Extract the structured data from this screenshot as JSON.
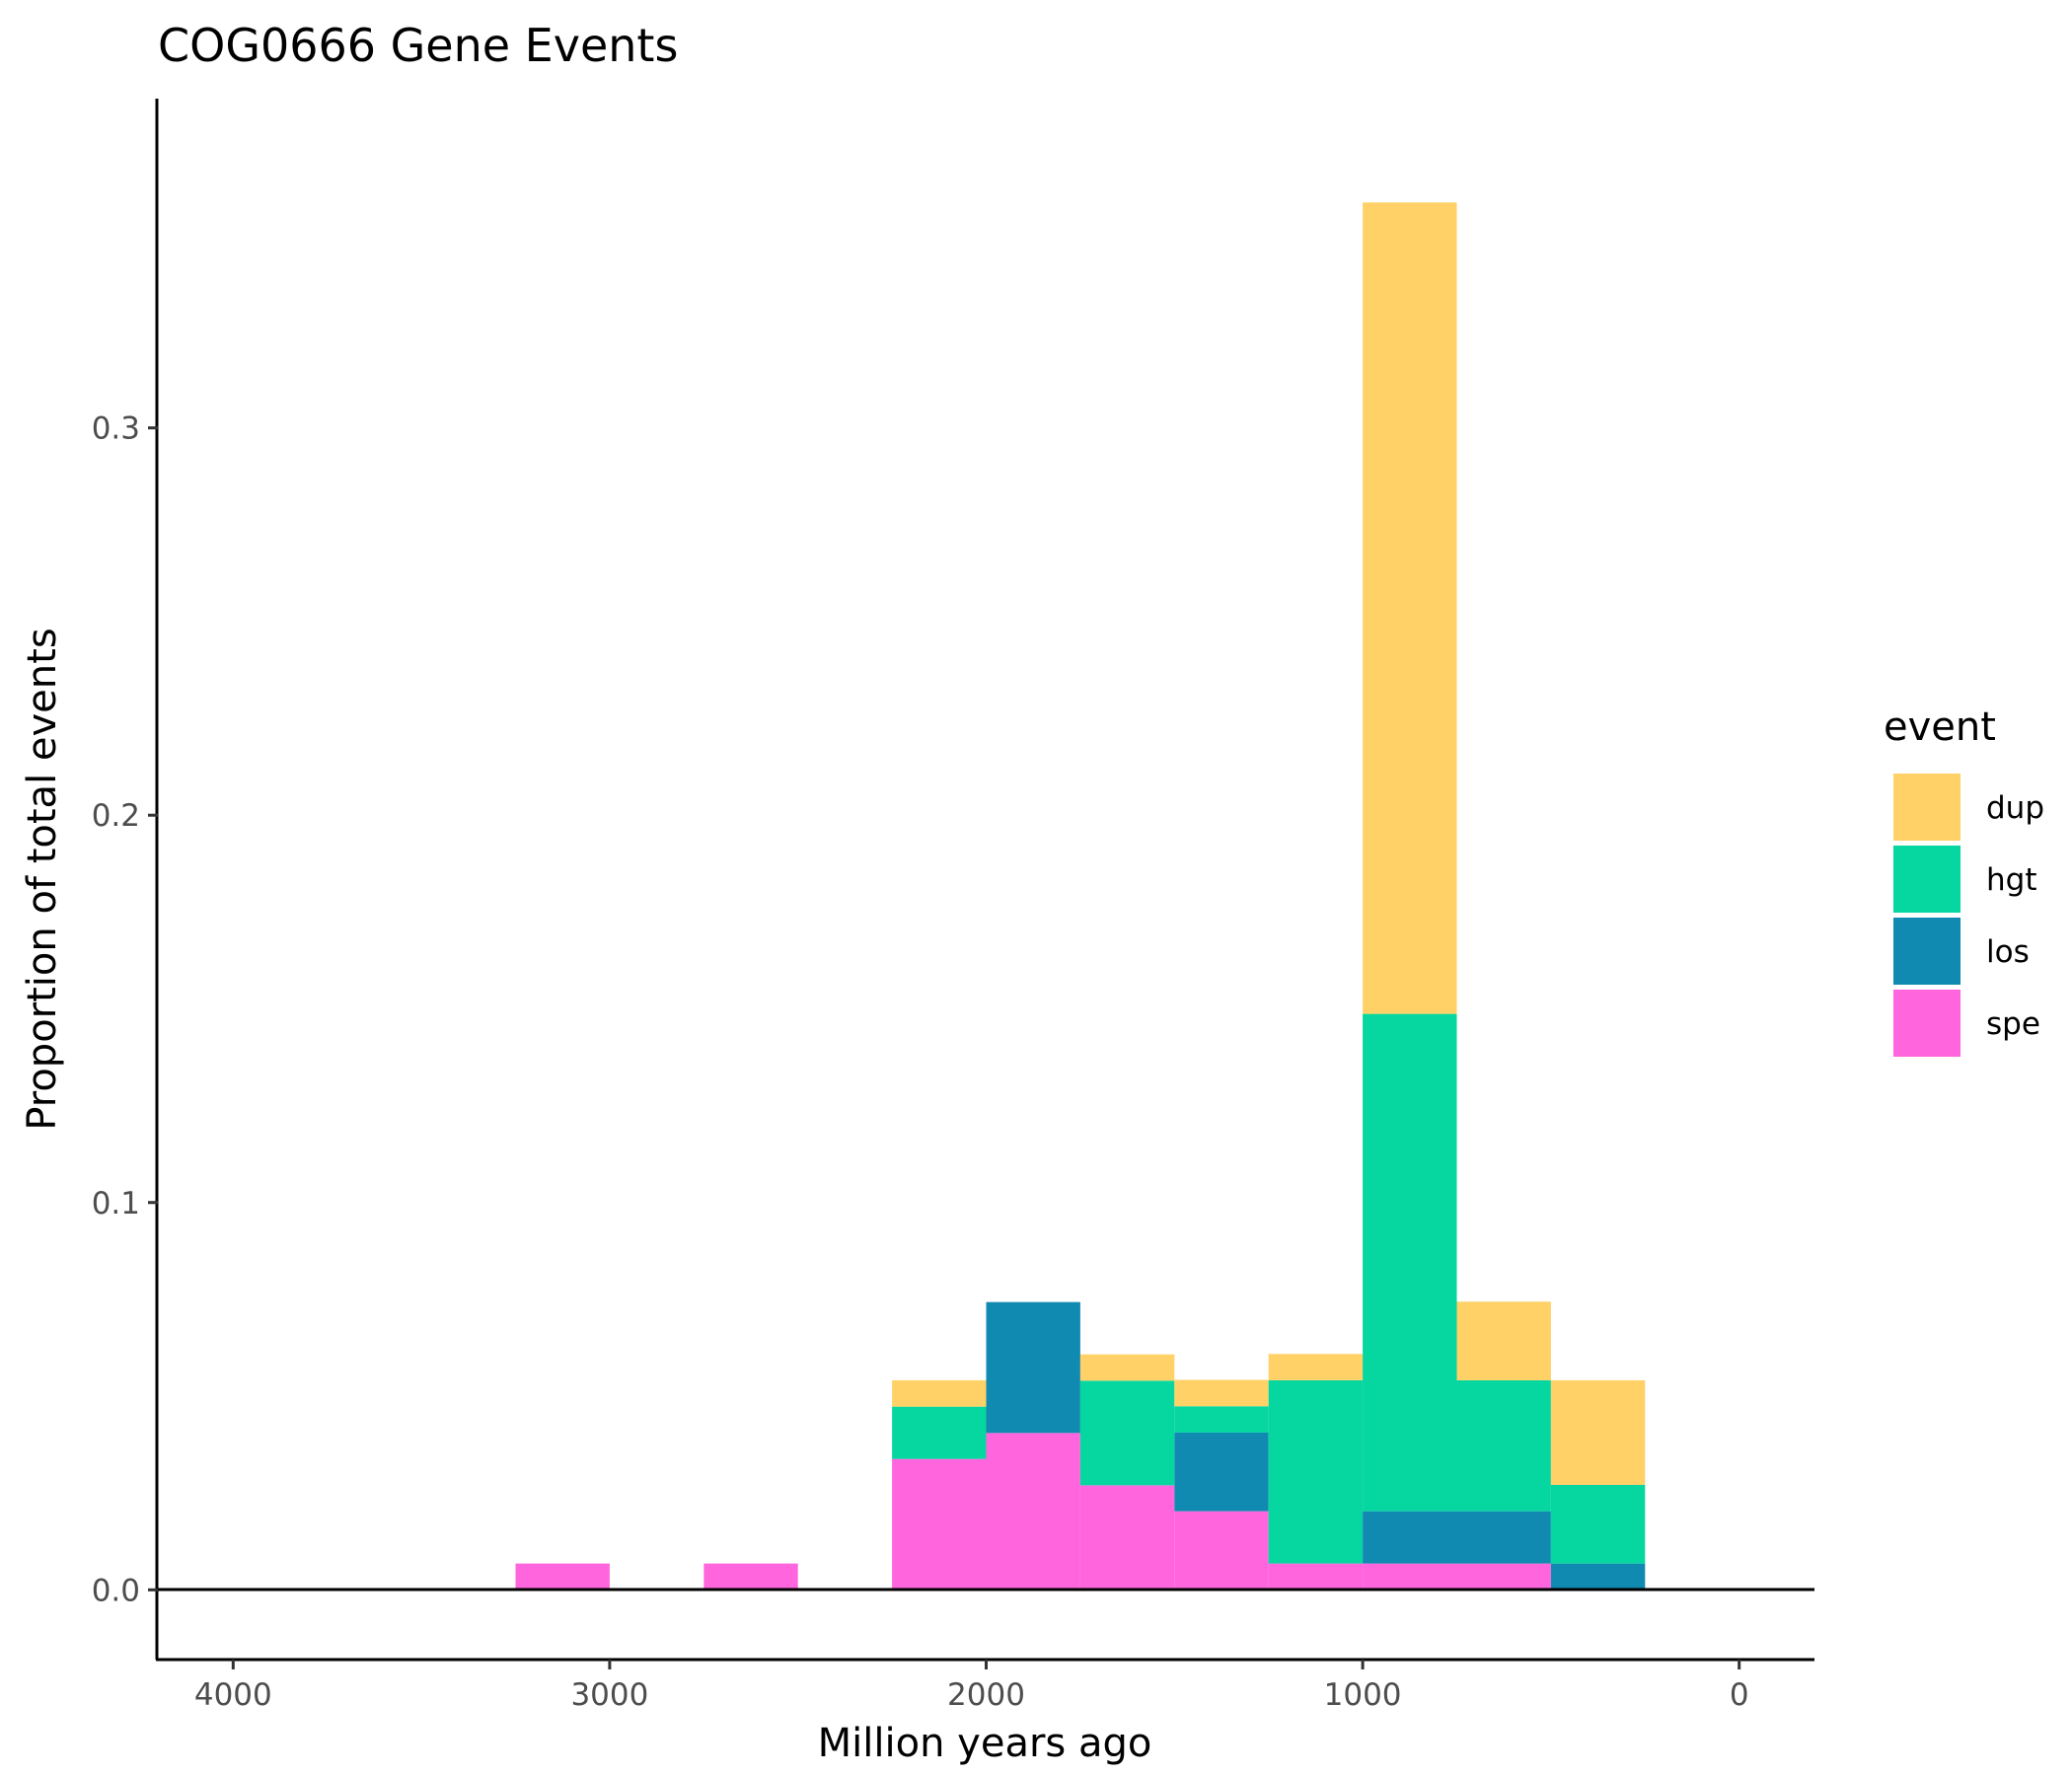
{
  "chart_data": {
    "type": "bar",
    "stacked": true,
    "title": "COG0666 Gene Events",
    "xlabel": "Million years ago",
    "ylabel": "Proportion of total events",
    "x_reversed": true,
    "xlim": [
      4200,
      -200
    ],
    "ylim": [
      -0.018,
      0.385
    ],
    "xticks": [
      4000,
      3000,
      2000,
      1000,
      0
    ],
    "yticks": [
      0.0,
      0.1,
      0.2,
      0.3
    ],
    "xtick_labels": [
      "4000",
      "3000",
      "2000",
      "1000",
      "0"
    ],
    "ytick_labels": [
      "0.0",
      "0.1",
      "0.2",
      "0.3"
    ],
    "bin_width": 250,
    "bins": [
      3125,
      2625,
      2125,
      1875,
      1625,
      1375,
      1125,
      875,
      625,
      375
    ],
    "series": [
      {
        "name": "spe",
        "color": "#ff66dd",
        "values": [
          0.0068,
          0.0068,
          0.0338,
          0.0405,
          0.027,
          0.0203,
          0.0068,
          0.0068,
          0.0068,
          0.0
        ]
      },
      {
        "name": "los",
        "color": "#118ab2",
        "values": [
          0.0,
          0.0,
          0.0,
          0.0338,
          0.0,
          0.0203,
          0.0,
          0.0135,
          0.0135,
          0.0068
        ]
      },
      {
        "name": "hgt",
        "color": "#06d6a0",
        "values": [
          0.0,
          0.0,
          0.0135,
          0.0,
          0.027,
          0.0068,
          0.0473,
          0.1284,
          0.0338,
          0.0203
        ]
      },
      {
        "name": "dup",
        "color": "#ffd166",
        "values": [
          0.0,
          0.0,
          0.0068,
          0.0,
          0.0068,
          0.0068,
          0.0068,
          0.2095,
          0.0203,
          0.027
        ]
      }
    ],
    "grid": false,
    "legend": {
      "title": "event",
      "placement": "right",
      "entries": [
        {
          "name": "dup",
          "color": "#ffd166"
        },
        {
          "name": "hgt",
          "color": "#06d6a0"
        },
        {
          "name": "los",
          "color": "#118ab2"
        },
        {
          "name": "spe",
          "color": "#ff66dd"
        }
      ]
    }
  }
}
